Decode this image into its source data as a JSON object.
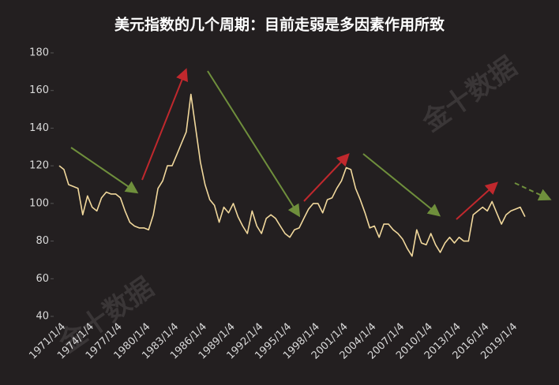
{
  "chart_data": {
    "type": "line",
    "title": "美元指数的几个周期：目前走弱是多因素作用所致",
    "watermark": "金十数据",
    "categories": [
      "1971/1/4",
      null,
      null,
      null,
      null,
      null,
      "1974/1/4",
      null,
      null,
      null,
      null,
      null,
      "1977/1/4",
      null,
      null,
      null,
      null,
      null,
      "1980/1/4",
      null,
      null,
      null,
      null,
      null,
      "1983/1/4",
      null,
      null,
      null,
      null,
      null,
      "1986/1/4",
      null,
      null,
      null,
      null,
      null,
      "1989/1/4",
      null,
      null,
      null,
      null,
      null,
      "1992/1/4",
      null,
      null,
      null,
      null,
      null,
      "1995/1/4",
      null,
      null,
      null,
      null,
      null,
      "1998/1/4",
      null,
      null,
      null,
      null,
      null,
      "2001/1/4",
      null,
      null,
      null,
      null,
      null,
      "2004/1/4",
      null,
      null,
      null,
      null,
      null,
      "2007/1/4",
      null,
      null,
      null,
      null,
      null,
      "2010/1/4",
      null,
      null,
      null,
      null,
      null,
      "2013/1/4",
      null,
      null,
      null,
      null,
      null,
      "2016/1/4",
      null,
      null,
      null,
      null,
      null,
      "2019/1/4",
      null,
      null,
      null
    ],
    "series": [
      {
        "color": "#f1d89c",
        "values": [
          120,
          118,
          110,
          109,
          108,
          94,
          104,
          98,
          96,
          103,
          106,
          105,
          105,
          103,
          96,
          90,
          88,
          87,
          87,
          86,
          94,
          108,
          112,
          120,
          120,
          126,
          132,
          138,
          158,
          140,
          122,
          110,
          102,
          99,
          90,
          98,
          95,
          100,
          93,
          88,
          84,
          96,
          88,
          84,
          92,
          94,
          92,
          88,
          84,
          82,
          86,
          87,
          92,
          97,
          100,
          100,
          95,
          102,
          103,
          108,
          112,
          119,
          118,
          108,
          102,
          95,
          87,
          88,
          82,
          89,
          89,
          86,
          84,
          81,
          76,
          72,
          86,
          79,
          78,
          84,
          78,
          74,
          79,
          82,
          79,
          82,
          80,
          80,
          94,
          96,
          98,
          96,
          101,
          95,
          89,
          94,
          96,
          97,
          98,
          93
        ]
      }
    ],
    "ylim": [
      40,
      180
    ],
    "yticks": [
      40,
      60,
      80,
      100,
      120,
      140,
      160,
      180
    ]
  }
}
